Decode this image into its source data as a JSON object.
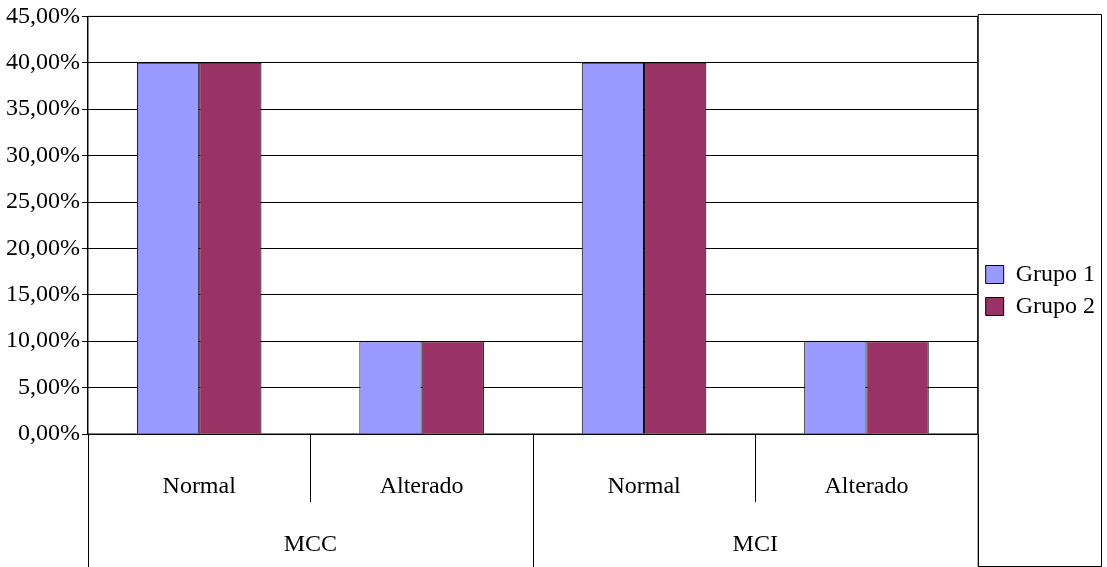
{
  "chart_data": {
    "type": "bar",
    "categories": [
      "Normal",
      "Alterado",
      "Normal",
      "Alterado"
    ],
    "series": [
      {
        "name": "Grupo 1",
        "color": "#9999ff",
        "values": [
          40,
          10,
          40,
          10
        ]
      },
      {
        "name": "Grupo 2",
        "color": "#993366",
        "values": [
          40,
          10,
          40,
          10
        ]
      }
    ],
    "annotations": [
      "MCC",
      "MCI"
    ],
    "ylim": [
      0,
      45
    ],
    "yticks": [
      {
        "value": 0,
        "label": "0,00%"
      },
      {
        "value": 5,
        "label": "5,00%"
      },
      {
        "value": 10,
        "label": "10,00%"
      },
      {
        "value": 15,
        "label": "15,00%"
      },
      {
        "value": 20,
        "label": "20,00%"
      },
      {
        "value": 25,
        "label": "25,00%"
      },
      {
        "value": 30,
        "label": "30,00%"
      },
      {
        "value": 35,
        "label": "35,00%"
      },
      {
        "value": 40,
        "label": "40,00%"
      },
      {
        "value": 45,
        "label": "45,00%"
      }
    ],
    "grid": "y",
    "legend": "right"
  }
}
